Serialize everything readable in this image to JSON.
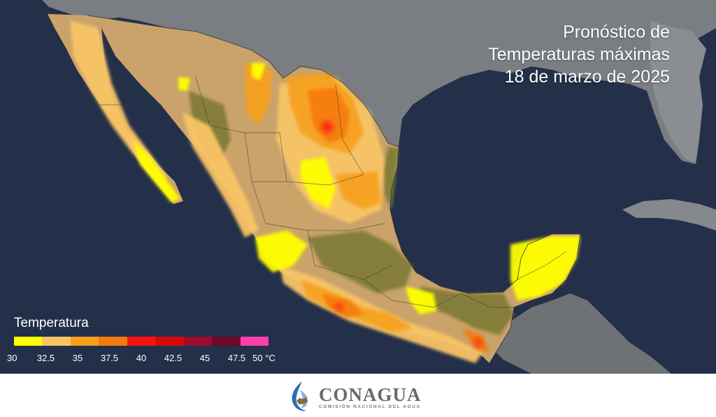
{
  "title": {
    "line1": "Pronóstico de",
    "line2": "Temperaturas máximas",
    "line3": "18 de marzo de 2025"
  },
  "legend": {
    "title": "Temperatura",
    "colors": [
      "#ffff00",
      "#f8c466",
      "#f7a01a",
      "#f57a10",
      "#ff1010",
      "#d40a0a",
      "#9c0c2c",
      "#6a0a28",
      "#ff3fa8"
    ],
    "ticks": [
      "30",
      "32.5",
      "35",
      "37.5",
      "40",
      "42.5",
      "45",
      "47.5",
      "50 °C"
    ]
  },
  "map_colors": {
    "ocean": "#243049",
    "land_neighbor": "#7a7d82",
    "land_mexico_base": "#c9a36a",
    "vegetation": "#7e7a35"
  },
  "logo": {
    "name": "CONAGUA",
    "subtitle": "COMISIÓN NACIONAL DEL AGUA"
  }
}
